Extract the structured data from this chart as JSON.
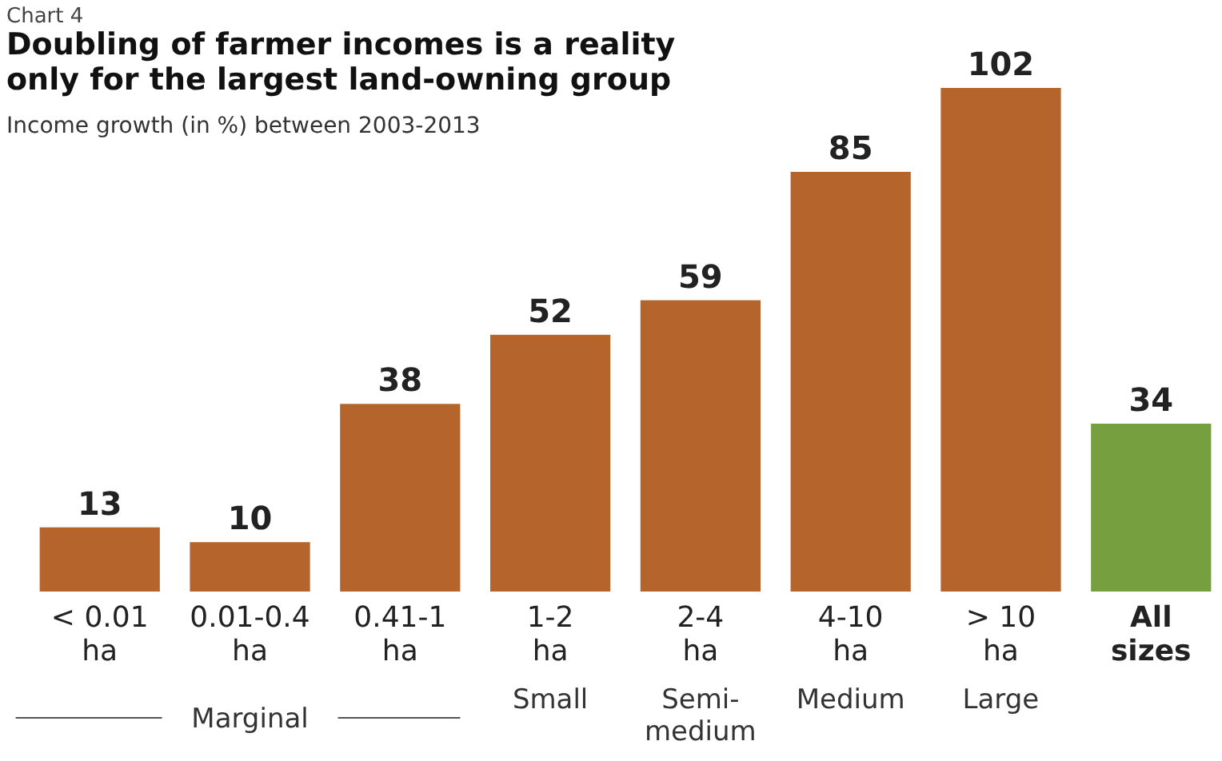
{
  "chart_data": {
    "type": "bar",
    "title": "Doubling of farmer incomes is a reality only for the largest land-owning group",
    "subtitle": "Income growth (in %) between 2003-2013",
    "categories": [
      "< 0.01 ha",
      "0.01-0.4 ha",
      "0.41-1 ha",
      "1-2 ha",
      "2-4 ha",
      "4-10 ha",
      "> 10 ha",
      "All sizes"
    ],
    "values": [
      13,
      10,
      38,
      52,
      59,
      85,
      102,
      34
    ],
    "colors": [
      "#b5652b",
      "#b5652b",
      "#b5652b",
      "#b5652b",
      "#b5652b",
      "#b5652b",
      "#b5652b",
      "#76a040"
    ],
    "data_labels": true,
    "annotations": [
      "Chart 4",
      "Marginal",
      "Small",
      "Semi-medium",
      "Medium",
      "Large"
    ]
  }
}
